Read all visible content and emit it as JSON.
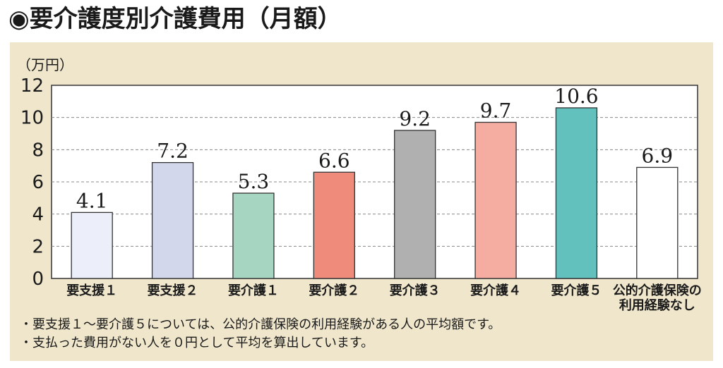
{
  "title": "◉要介護度別介護費用（月額）",
  "notes": [
    "・要支援１～要介護５については、公的介護保険の利用経験がある人の平均額です。",
    "・支払った費用がない人を０円として平均を算出しています。"
  ],
  "colors": {
    "panel_bg": "#efe6cc",
    "bars": [
      "#eceffa",
      "#d3d7ec",
      "#a6d6c1",
      "#ef8b7a",
      "#b0b0b0",
      "#f4ada0",
      "#62c0bd",
      "#ffffff"
    ]
  },
  "chart_data": {
    "type": "bar",
    "unit_label": "（万円）",
    "categories": [
      [
        "要支援１"
      ],
      [
        "要支援２"
      ],
      [
        "要介護１"
      ],
      [
        "要介護２"
      ],
      [
        "要介護３"
      ],
      [
        "要介護４"
      ],
      [
        "要介護５"
      ],
      [
        "公的介護保険の",
        "利用経験なし"
      ]
    ],
    "values": [
      4.1,
      7.2,
      5.3,
      6.6,
      9.2,
      9.7,
      10.6,
      6.9
    ],
    "value_labels": [
      "4.1",
      "7.2",
      "5.3",
      "6.6",
      "9.2",
      "9.7",
      "10.6",
      "6.9"
    ],
    "ylim": [
      0,
      12
    ],
    "yticks": [
      0,
      2,
      4,
      6,
      8,
      10,
      12
    ],
    "grid": "dashed horizontal"
  }
}
